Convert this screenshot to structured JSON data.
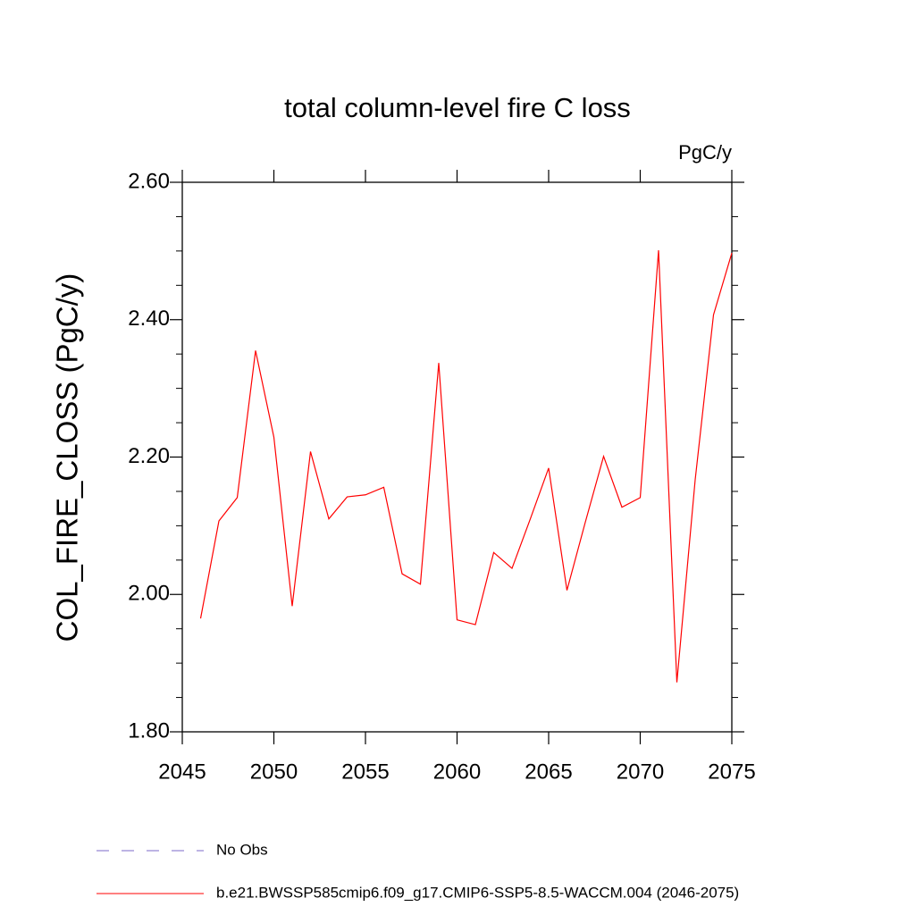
{
  "chart_data": {
    "type": "line",
    "title": "total column-level fire C loss",
    "units": "PgC/y",
    "y_label": "COL_FIRE_CLOSS  (PgC/y)",
    "x": [
      2046,
      2047,
      2048,
      2049,
      2050,
      2051,
      2052,
      2053,
      2054,
      2055,
      2056,
      2057,
      2058,
      2059,
      2060,
      2061,
      2062,
      2063,
      2064,
      2065,
      2066,
      2067,
      2068,
      2069,
      2070,
      2071,
      2072,
      2073,
      2074,
      2075
    ],
    "series": [
      {
        "name": "b.e21.BWSSP585cmip6.f09_g17.CMIP6-SSP5-8.5-WACCM.004 (2046-2075)",
        "color": "#ff0000",
        "values": [
          1.965,
          2.107,
          2.141,
          2.355,
          2.229,
          1.983,
          2.208,
          2.11,
          2.142,
          2.145,
          2.156,
          2.03,
          2.015,
          2.337,
          1.963,
          1.956,
          2.061,
          2.038,
          2.11,
          2.184,
          2.006,
          2.105,
          2.201,
          2.127,
          2.141,
          2.501,
          1.872,
          2.167,
          2.407,
          2.497
        ]
      }
    ],
    "reference_entries": [
      {
        "name": "No Obs",
        "color": "#7b68c8",
        "style": "dashed"
      }
    ],
    "xlim": [
      2045,
      2075
    ],
    "xticks": [
      2045,
      2050,
      2055,
      2060,
      2065,
      2070,
      2075
    ],
    "ylim": [
      1.8,
      2.6
    ],
    "yticks": [
      {
        "value": 1.8,
        "label": "1.80"
      },
      {
        "value": 2.0,
        "label": "2.00"
      },
      {
        "value": 2.2,
        "label": "2.20"
      },
      {
        "value": 2.4,
        "label": "2.40"
      },
      {
        "value": 2.6,
        "label": "2.60"
      }
    ],
    "yminorticks": [
      1.85,
      1.9,
      1.95,
      2.05,
      2.1,
      2.15,
      2.25,
      2.3,
      2.35,
      2.45,
      2.5,
      2.55
    ],
    "grid": false
  }
}
